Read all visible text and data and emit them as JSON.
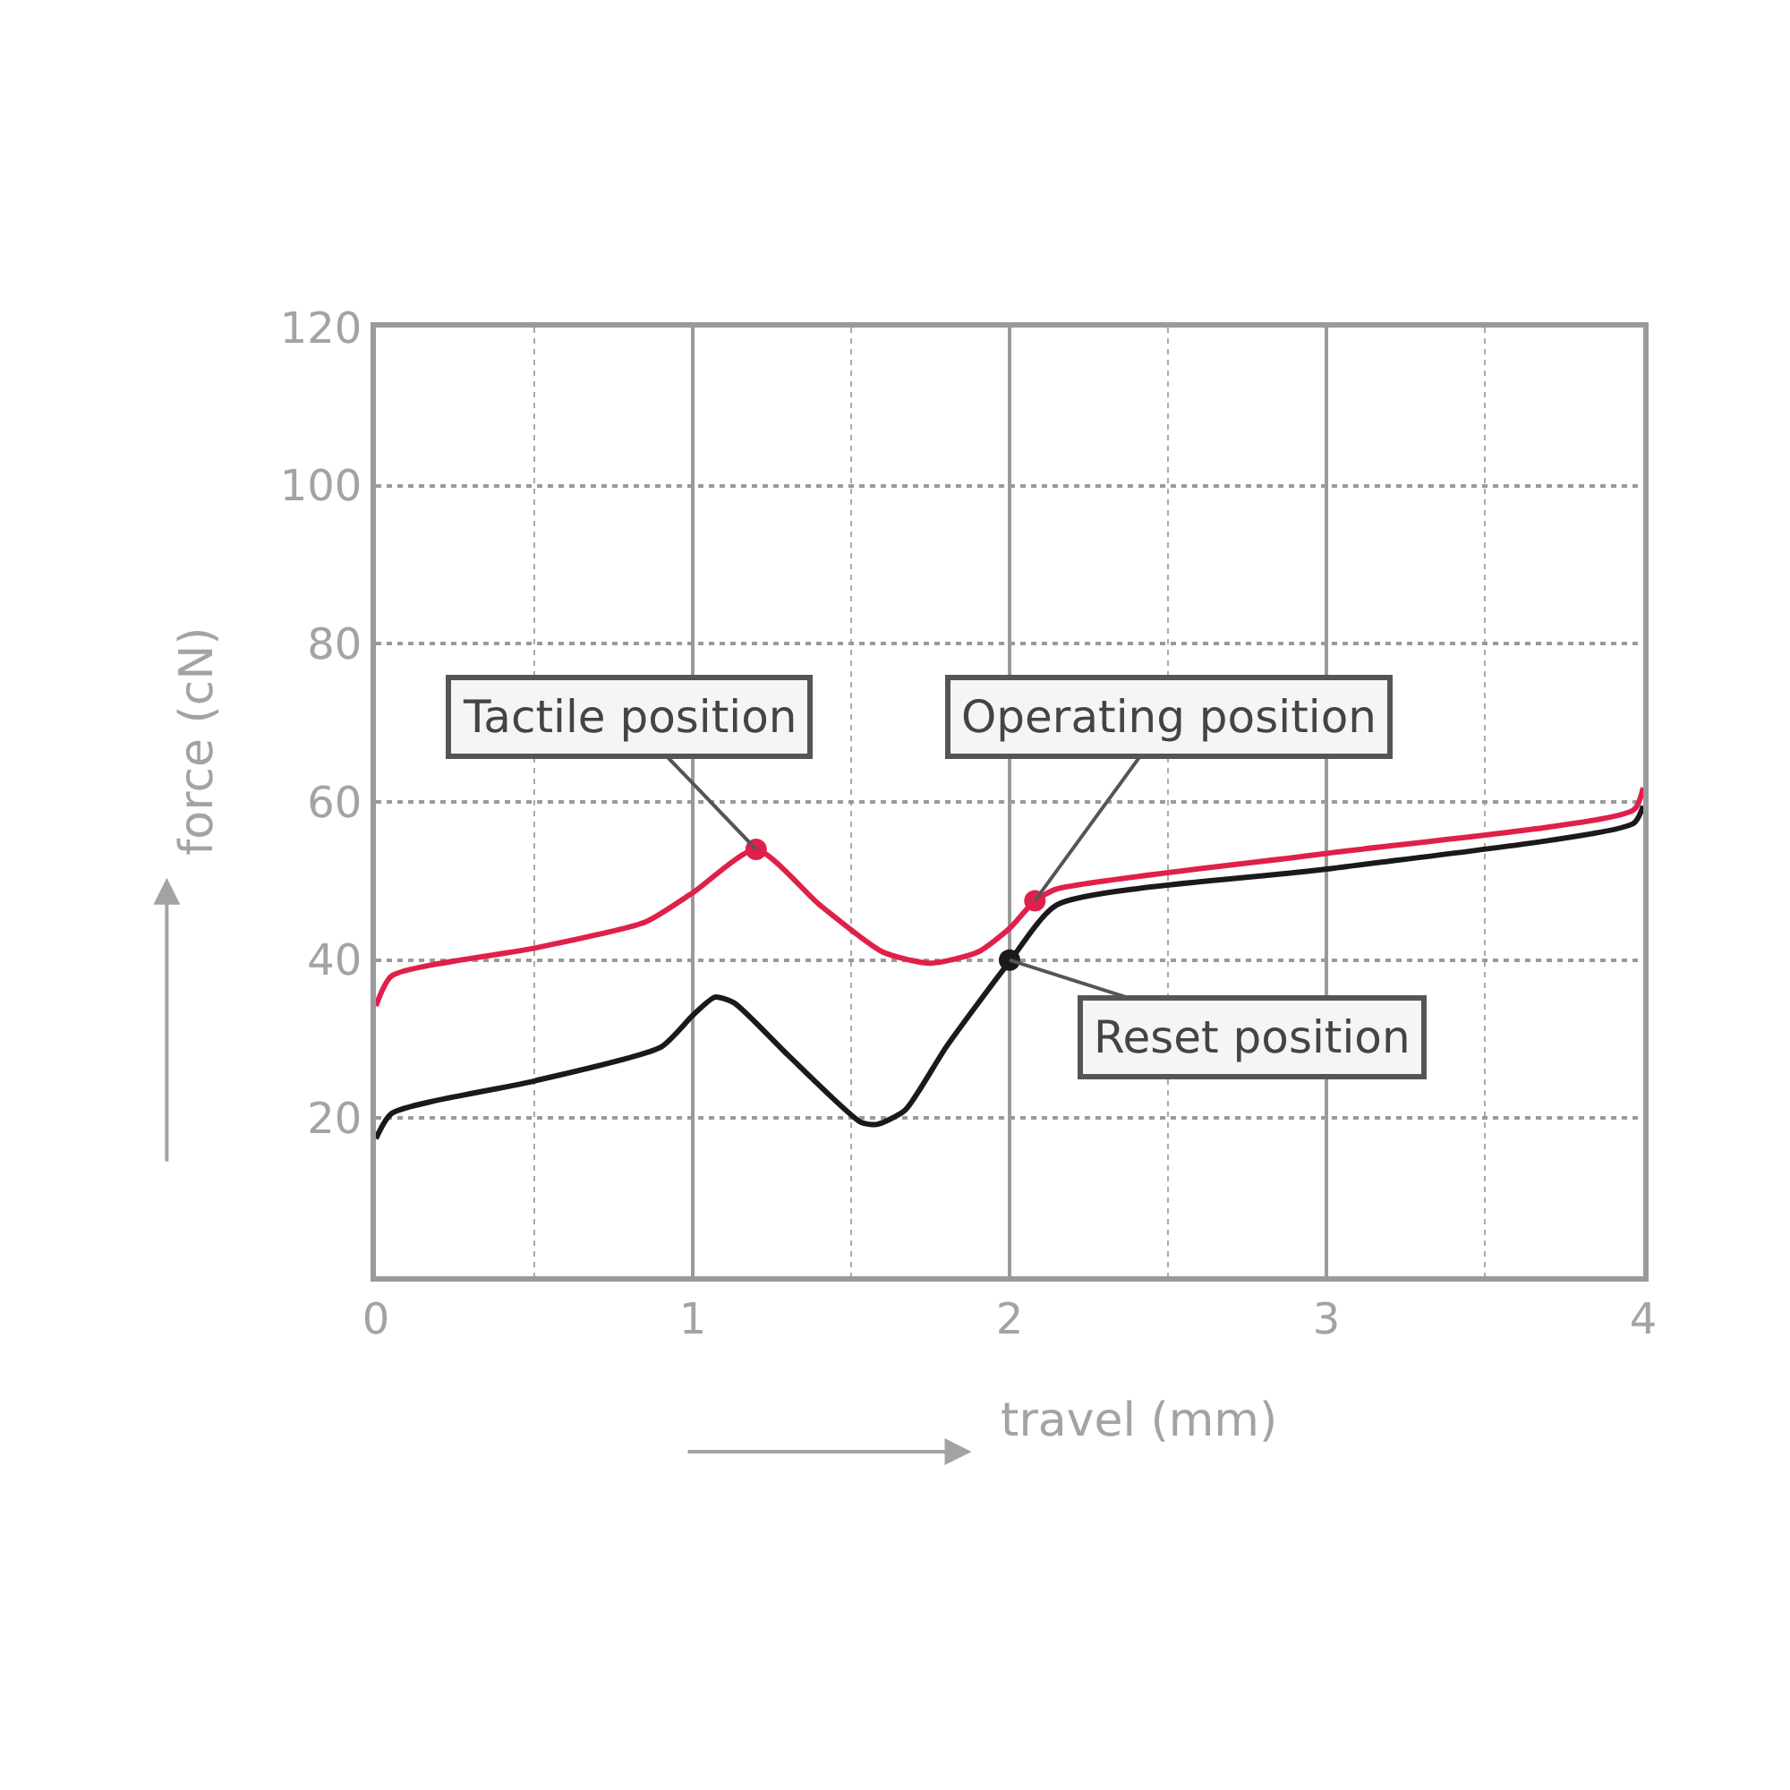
{
  "chart_data": {
    "type": "line",
    "xlabel": "travel (mm)",
    "ylabel": "force (cN)",
    "xlim": [
      0,
      4
    ],
    "xticks": [
      0,
      1,
      2,
      3,
      4
    ],
    "ylim": [
      0,
      120
    ],
    "yticks": [
      {
        "value": 0,
        "label": null
      },
      20,
      40,
      60,
      80,
      100,
      120
    ],
    "grid": true,
    "marker": "none",
    "line_style": "solid",
    "series": [
      {
        "color": "#e0204a",
        "x": [
          0,
          0.05,
          0.5,
          0.85,
          1.0,
          1.2,
          1.4,
          1.6,
          1.75,
          1.9,
          2.0,
          2.08,
          2.15,
          3.0,
          3.97,
          4.0
        ],
        "values": [
          34.2,
          38,
          41.5,
          44.8,
          48.5,
          54,
          47,
          41,
          39.6,
          41,
          44,
          47.5,
          49,
          53.5,
          59,
          61.8
        ]
      },
      {
        "color": "#1a1a1a",
        "x": [
          0,
          0.05,
          0.5,
          0.9,
          1.0,
          1.07,
          1.13,
          1.3,
          1.53,
          1.58,
          1.67,
          1.8,
          2.0,
          2.15,
          3.0,
          3.97,
          4.0
        ],
        "values": [
          17.4,
          20.6,
          24.7,
          29,
          33,
          35.3,
          34.6,
          28,
          19.5,
          19.2,
          21,
          29,
          39.8,
          47,
          51.5,
          57.3,
          59.5
        ]
      },
      {
        "type": "scatter",
        "marker": "circle",
        "colors": [
          "#e0204a",
          "#e0204a",
          "#1a1a1a"
        ],
        "x": [
          1.2,
          2.08,
          2.0
        ],
        "values": [
          54,
          47.5,
          40
        ]
      }
    ],
    "annotations": [
      {
        "text": "Tactile position",
        "x": 1.2,
        "y": 54
      },
      {
        "text": "Operating position",
        "x": 2.08,
        "y": 47.5
      },
      {
        "text": "Reset position",
        "x": 2.0,
        "y": 40
      }
    ]
  }
}
